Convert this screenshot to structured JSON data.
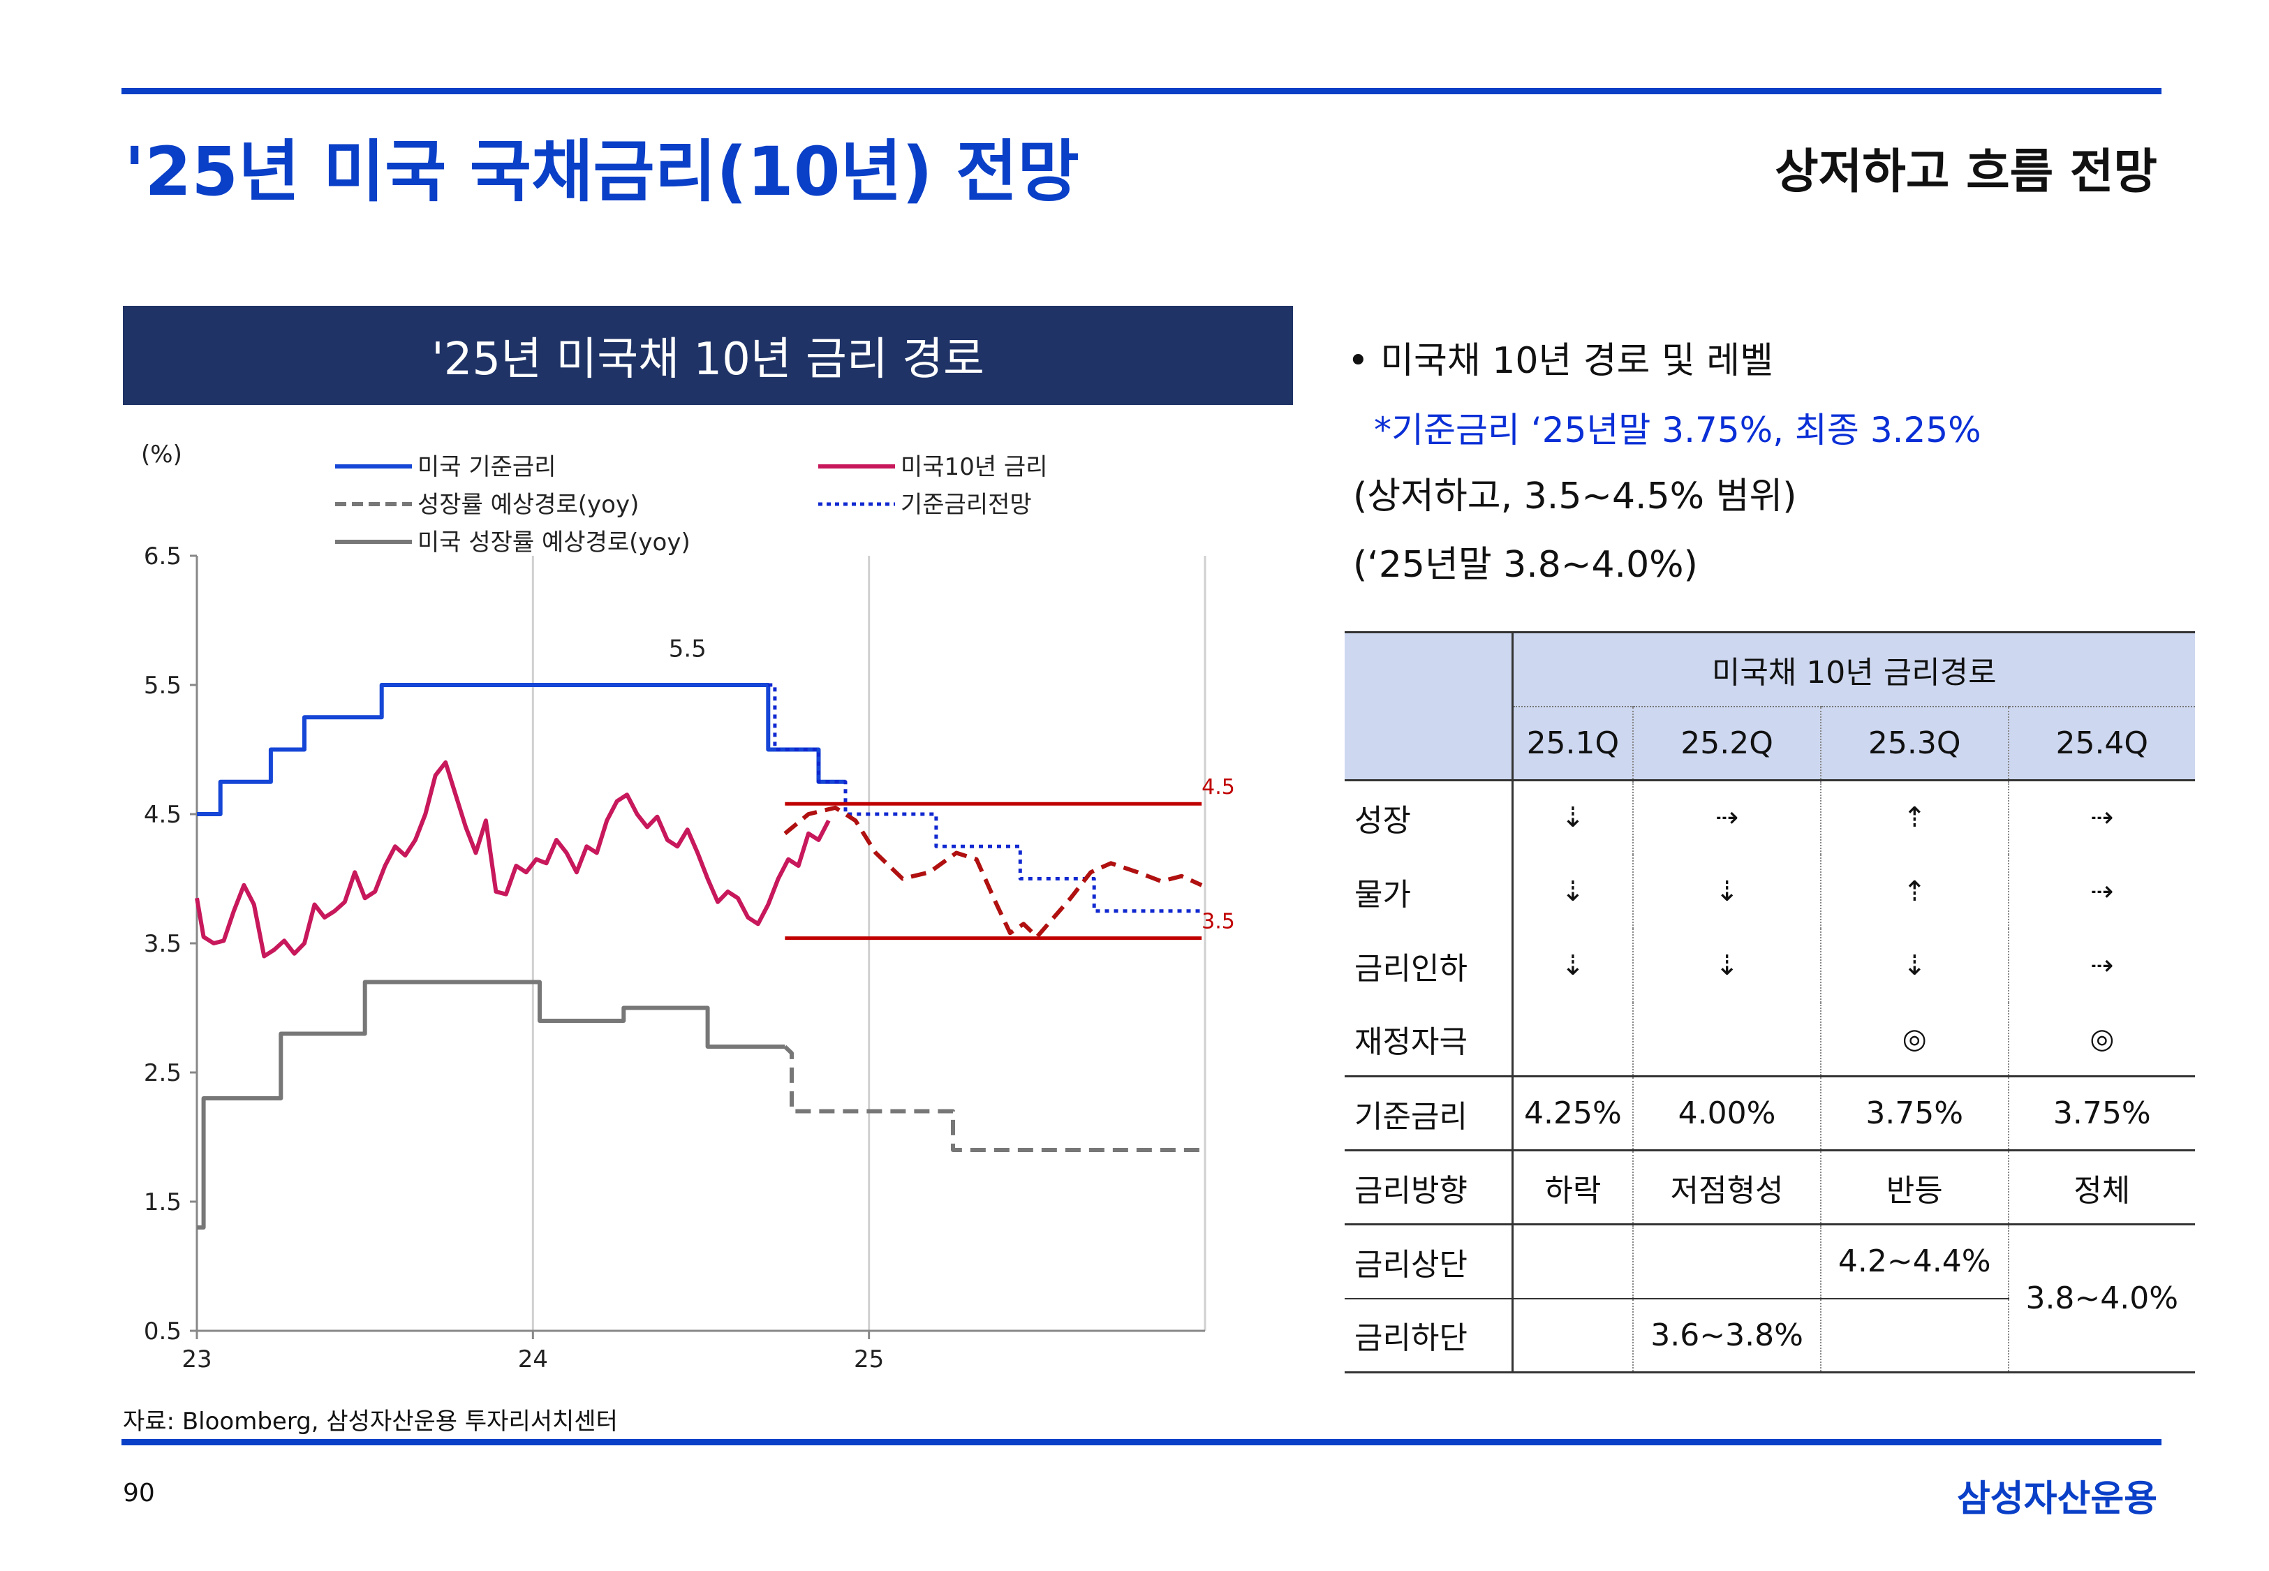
{
  "header": {
    "title": "'25년 미국 국채금리(10년) 전망",
    "subtitle": "상저하고 흐름 전망"
  },
  "chart_panel": {
    "header": "'25년 미국채 10년 금리 경로"
  },
  "chart_data": {
    "type": "line",
    "title": "",
    "xlabel": "",
    "ylabel": "(%)",
    "ylim": [
      0.5,
      6.5
    ],
    "xlim": [
      2023.0,
      2026.0
    ],
    "yticks": [
      "6.5",
      "5.5",
      "4.5",
      "3.5",
      "2.5",
      "1.5",
      "0.5"
    ],
    "ytick_values": [
      6.5,
      5.5,
      4.5,
      3.5,
      2.5,
      1.5,
      0.5
    ],
    "xticks": [
      "23",
      "24",
      "25"
    ],
    "xtick_values": [
      2023.0,
      2024.0,
      2025.0
    ],
    "grid": "vertical",
    "legend_placement": "top",
    "legend": [
      {
        "label": "미국 기준금리",
        "color": "#1546d6",
        "style": "solid"
      },
      {
        "label": "미국10년 금리",
        "color": "#c8185c",
        "style": "solid"
      },
      {
        "label": "성장률 예상경로(yoy)",
        "color": "#777777",
        "style": "dashed"
      },
      {
        "label": "기준금리전망",
        "color": "#1028d0",
        "style": "dotted"
      },
      {
        "label": "미국 성장률 예상경로(yoy)",
        "color": "#777777",
        "style": "solid"
      }
    ],
    "series": [
      {
        "name": "미국 기준금리",
        "color": "#1546d6",
        "style": "solid",
        "x": [
          2023.0,
          2023.07,
          2023.07,
          2023.22,
          2023.22,
          2023.32,
          2023.32,
          2023.55,
          2023.55,
          2024.7,
          2024.7,
          2024.85,
          2024.85,
          2024.93
        ],
        "y": [
          4.5,
          4.5,
          4.75,
          4.75,
          5.0,
          5.0,
          5.25,
          5.25,
          5.5,
          5.5,
          5.0,
          5.0,
          4.75,
          4.75
        ]
      },
      {
        "name": "미국10년 금리",
        "color": "#c8185c",
        "style": "solid",
        "x": [
          2023.0,
          2023.02,
          2023.05,
          2023.08,
          2023.11,
          2023.14,
          2023.17,
          2023.2,
          2023.23,
          2023.26,
          2023.29,
          2023.32,
          2023.35,
          2023.38,
          2023.41,
          2023.44,
          2023.47,
          2023.5,
          2023.53,
          2023.56,
          2023.59,
          2023.62,
          2023.65,
          2023.68,
          2023.71,
          2023.74,
          2023.77,
          2023.8,
          2023.83,
          2023.86,
          2023.89,
          2023.92,
          2023.95,
          2023.98,
          2024.01,
          2024.04,
          2024.07,
          2024.1,
          2024.13,
          2024.16,
          2024.19,
          2024.22,
          2024.25,
          2024.28,
          2024.31,
          2024.34,
          2024.37,
          2024.4,
          2024.43,
          2024.46,
          2024.49,
          2024.52,
          2024.55,
          2024.58,
          2024.61,
          2024.64,
          2024.67,
          2024.7,
          2024.73,
          2024.76,
          2024.79,
          2024.82,
          2024.85,
          2024.88
        ],
        "y": [
          3.85,
          3.55,
          3.5,
          3.52,
          3.75,
          3.95,
          3.8,
          3.4,
          3.45,
          3.52,
          3.42,
          3.5,
          3.8,
          3.7,
          3.75,
          3.82,
          4.05,
          3.85,
          3.9,
          4.1,
          4.25,
          4.18,
          4.3,
          4.5,
          4.8,
          4.9,
          4.65,
          4.4,
          4.2,
          4.45,
          3.9,
          3.88,
          4.1,
          4.05,
          4.15,
          4.12,
          4.3,
          4.2,
          4.05,
          4.25,
          4.2,
          4.45,
          4.6,
          4.65,
          4.5,
          4.4,
          4.48,
          4.3,
          4.25,
          4.38,
          4.2,
          4.0,
          3.82,
          3.9,
          3.85,
          3.7,
          3.65,
          3.8,
          4.0,
          4.15,
          4.1,
          4.35,
          4.3,
          4.45
        ]
      },
      {
        "name": "성장률 예상경로(yoy)",
        "color": "#777777",
        "style": "dashed",
        "x": [
          2024.75,
          2024.77,
          2024.77,
          2025.25,
          2025.25,
          2025.25,
          2025.99
        ],
        "y": [
          2.7,
          2.65,
          2.2,
          2.2,
          2.2,
          1.9,
          1.9
        ]
      },
      {
        "name": "기준금리전망",
        "color": "#1028d0",
        "style": "dotted",
        "x": [
          2024.7,
          2024.72,
          2024.72,
          2024.85,
          2024.85,
          2024.93,
          2024.93,
          2025.2,
          2025.2,
          2025.45,
          2025.45,
          2025.67,
          2025.67,
          2025.99
        ],
        "y": [
          5.5,
          5.5,
          5.0,
          5.0,
          4.75,
          4.75,
          4.5,
          4.5,
          4.25,
          4.25,
          4.0,
          4.0,
          3.75,
          3.75
        ]
      },
      {
        "name": "미국 성장률 예상경로(yoy)",
        "color": "#777777",
        "style": "solid",
        "x": [
          2023.0,
          2023.02,
          2023.02,
          2023.25,
          2023.25,
          2023.5,
          2023.5,
          2024.02,
          2024.02,
          2024.27,
          2024.27,
          2024.52,
          2024.52,
          2024.75
        ],
        "y": [
          1.3,
          1.3,
          2.3,
          2.3,
          2.8,
          2.8,
          3.2,
          3.2,
          2.9,
          2.9,
          3.0,
          3.0,
          2.7,
          2.7
        ]
      },
      {
        "name": "",
        "color": "#b01010",
        "style": "dashed",
        "x": [
          2024.75,
          2024.82,
          2024.9,
          2024.96,
          2025.02,
          2025.1,
          2025.18,
          2025.26,
          2025.32,
          2025.38,
          2025.42,
          2025.46,
          2025.5,
          2025.55,
          2025.6,
          2025.66,
          2025.72,
          2025.8,
          2025.87,
          2025.93,
          2025.99
        ],
        "y": [
          4.35,
          4.5,
          4.55,
          4.45,
          4.2,
          4.0,
          4.05,
          4.2,
          4.15,
          3.8,
          3.58,
          3.65,
          3.55,
          3.7,
          3.85,
          4.05,
          4.12,
          4.05,
          3.98,
          4.02,
          3.95
        ]
      }
    ],
    "reference_lines": [
      {
        "y": 4.58,
        "x_start": 2024.75,
        "x_end": 2025.99,
        "color": "#c00000",
        "label": "4.5"
      },
      {
        "y": 3.54,
        "x_start": 2024.75,
        "x_end": 2025.99,
        "color": "#c00000",
        "label": "3.5"
      }
    ],
    "annotations": [
      {
        "text": "5.5",
        "x": 2024.46,
        "y": 5.72
      }
    ]
  },
  "right_panel": {
    "bullet": "• 미국채 10년 경로 및 레벨",
    "note": "*기준금리 ‘25년말 3.75%, 최종 3.25%",
    "range": "(상저하고, 3.5~4.5% 범위)",
    "year_end": "(‘25년말 3.8~4.0%)"
  },
  "table": {
    "group_header": "미국채 10년 금리경로",
    "quarters": [
      "25.1Q",
      "25.2Q",
      "25.3Q",
      "25.4Q"
    ],
    "rows": [
      {
        "label": "성장",
        "cells": [
          "⇣",
          "⇢",
          "⇡",
          "⇢"
        ]
      },
      {
        "label": "물가",
        "cells": [
          "⇣",
          "⇣",
          "⇡",
          "⇢"
        ]
      },
      {
        "label": "금리인하",
        "cells": [
          "⇣",
          "⇣",
          "⇣",
          "⇢"
        ]
      },
      {
        "label": "재정자극",
        "cells": [
          "",
          "",
          "◎",
          "◎"
        ]
      },
      {
        "label": "기준금리",
        "cells": [
          "4.25%",
          "4.00%",
          "3.75%",
          "3.75%"
        ]
      },
      {
        "label": "금리방향",
        "cells": [
          "하락",
          "저점형성",
          "반등",
          "정체"
        ]
      },
      {
        "label": "금리상단",
        "cells": [
          "",
          "",
          "4.2~4.4%",
          "3.8~4.0%"
        ]
      },
      {
        "label": "금리하단",
        "cells": [
          "",
          "3.6~3.8%",
          ""
        ]
      }
    ]
  },
  "footer": {
    "source": "자료: Bloomberg, 삼성자산운용 투자리서치센터",
    "page_number": "90",
    "brand": "삼성자산운용"
  },
  "colors": {
    "accent": "#0a3fc7",
    "header_bg": "#1f3366",
    "table_header_bg": "#cdd7f0"
  }
}
